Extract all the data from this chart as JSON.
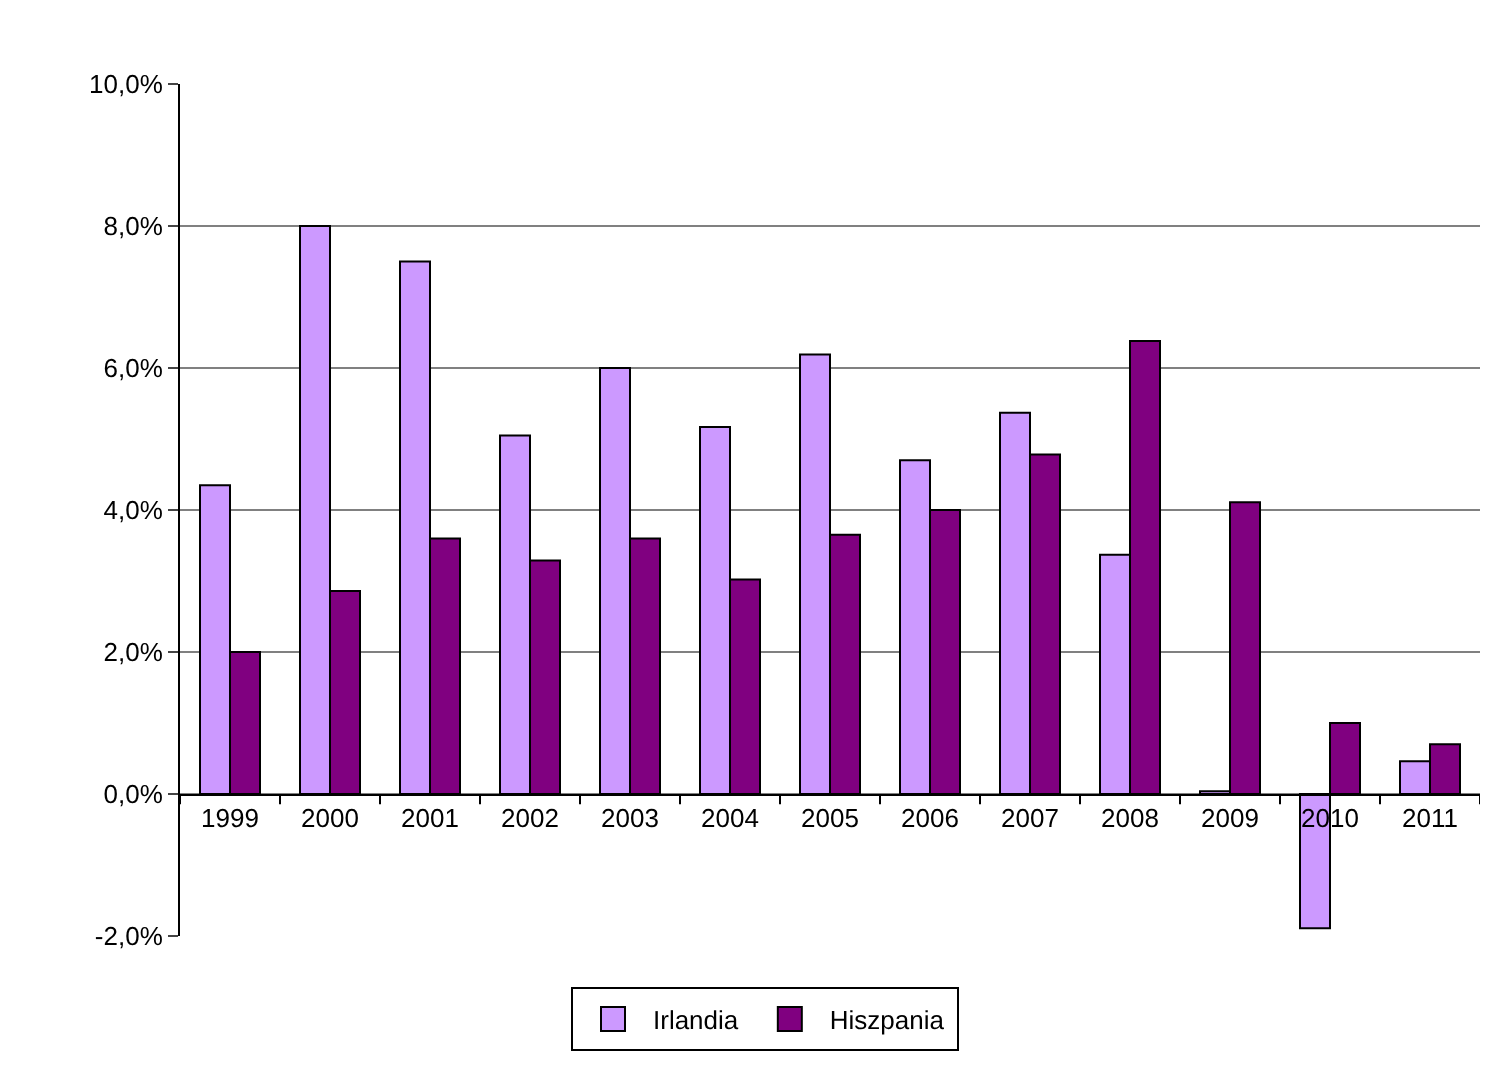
{
  "chart_data": {
    "type": "bar",
    "categories": [
      "1999",
      "2000",
      "2001",
      "2002",
      "2003",
      "2004",
      "2005",
      "2006",
      "2007",
      "2008",
      "2009",
      "2010",
      "2011"
    ],
    "series": [
      {
        "name": "Irlandia",
        "color": "#cc99ff",
        "values": [
          4.35,
          8.0,
          7.5,
          5.05,
          6.0,
          5.17,
          6.19,
          4.7,
          5.37,
          3.37,
          0.04,
          -1.89,
          0.46
        ]
      },
      {
        "name": "Hiszpania",
        "color": "#800080",
        "values": [
          2.0,
          2.86,
          3.6,
          3.29,
          3.6,
          3.02,
          3.65,
          4.0,
          4.78,
          6.38,
          4.11,
          1.0,
          0.7
        ]
      }
    ],
    "ylim": [
      -2,
      10
    ],
    "yticks": [
      {
        "value": -2,
        "label": "-2,0%"
      },
      {
        "value": 0,
        "label": "0,0%"
      },
      {
        "value": 2,
        "label": "2,0%"
      },
      {
        "value": 4,
        "label": "4,0%"
      },
      {
        "value": 6,
        "label": "6,0%"
      },
      {
        "value": 8,
        "label": "8,0%"
      },
      {
        "value": 10,
        "label": "10,0%"
      }
    ],
    "grid": "y",
    "legend": "bottom"
  }
}
